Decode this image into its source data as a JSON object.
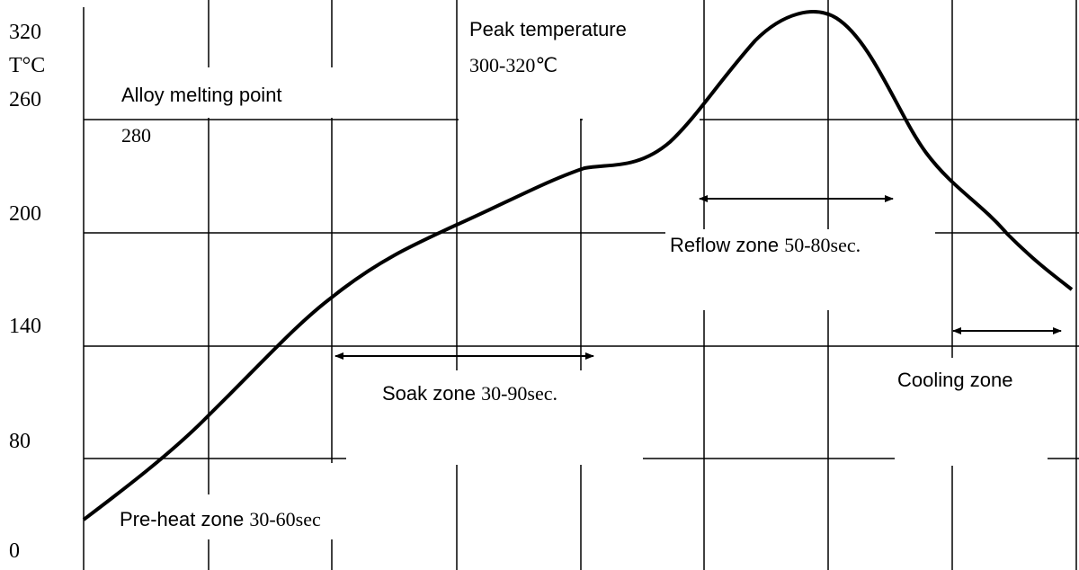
{
  "y_labels": [
    "320",
    "T°C",
    "260",
    "200",
    "140",
    "80",
    "0"
  ],
  "alloy_melting_point": {
    "label": "Alloy melting point",
    "value": "280"
  },
  "peak_temperature": {
    "label": "Peak temperature",
    "value": "300-320℃"
  },
  "reflow_zone": {
    "label": "Reflow zone ",
    "duration": "50-80sec."
  },
  "soak_zone": {
    "label": "Soak zone ",
    "duration": "30-90sec."
  },
  "cooling_zone": {
    "label": "Cooling zone"
  },
  "preheat_zone": {
    "label": "Pre-heat zone ",
    "duration": "30-60sec"
  }
}
